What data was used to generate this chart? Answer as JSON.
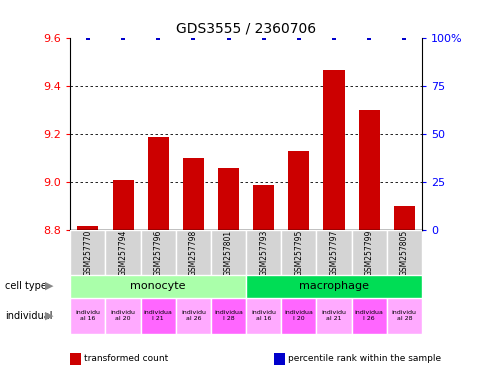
{
  "title": "GDS3555 / 2360706",
  "samples": [
    "GSM257770",
    "GSM257794",
    "GSM257796",
    "GSM257798",
    "GSM257801",
    "GSM257793",
    "GSM257795",
    "GSM257797",
    "GSM257799",
    "GSM257805"
  ],
  "transformed_count": [
    8.82,
    9.01,
    9.19,
    9.1,
    9.06,
    8.99,
    9.13,
    9.47,
    9.3,
    8.9
  ],
  "percentile_rank": [
    100,
    100,
    100,
    100,
    100,
    100,
    100,
    100,
    100,
    100
  ],
  "ylim": [
    8.8,
    9.6
  ],
  "yticks": [
    8.8,
    9.0,
    9.2,
    9.4,
    9.6
  ],
  "right_yticks": [
    0,
    25,
    50,
    75,
    100
  ],
  "right_ylabels": [
    "0",
    "25",
    "50",
    "75",
    "100%"
  ],
  "cell_types": [
    {
      "label": "monocyte",
      "start": 0,
      "end": 5,
      "color": "#aaffaa"
    },
    {
      "label": "macrophage",
      "start": 5,
      "end": 10,
      "color": "#00dd55"
    }
  ],
  "indiv_labels": [
    "individu\nal 16",
    "individu\nal 20",
    "individua\nl 21",
    "individu\nal 26",
    "individua\nl 28",
    "individu\nal 16",
    "individua\nl 20",
    "individu\nal 21",
    "individua\nl 26",
    "individu\nal 28"
  ],
  "indiv_colors": [
    "#ffaaff",
    "#ffaaff",
    "#ff66ff",
    "#ffaaff",
    "#ff66ff",
    "#ffaaff",
    "#ff66ff",
    "#ffaaff",
    "#ff66ff",
    "#ffaaff"
  ],
  "bar_color": "#cc0000",
  "dot_color": "#0000cc",
  "bar_width": 0.6,
  "legend_items": [
    {
      "color": "#cc0000",
      "label": "transformed count"
    },
    {
      "color": "#0000cc",
      "label": "percentile rank within the sample"
    }
  ]
}
